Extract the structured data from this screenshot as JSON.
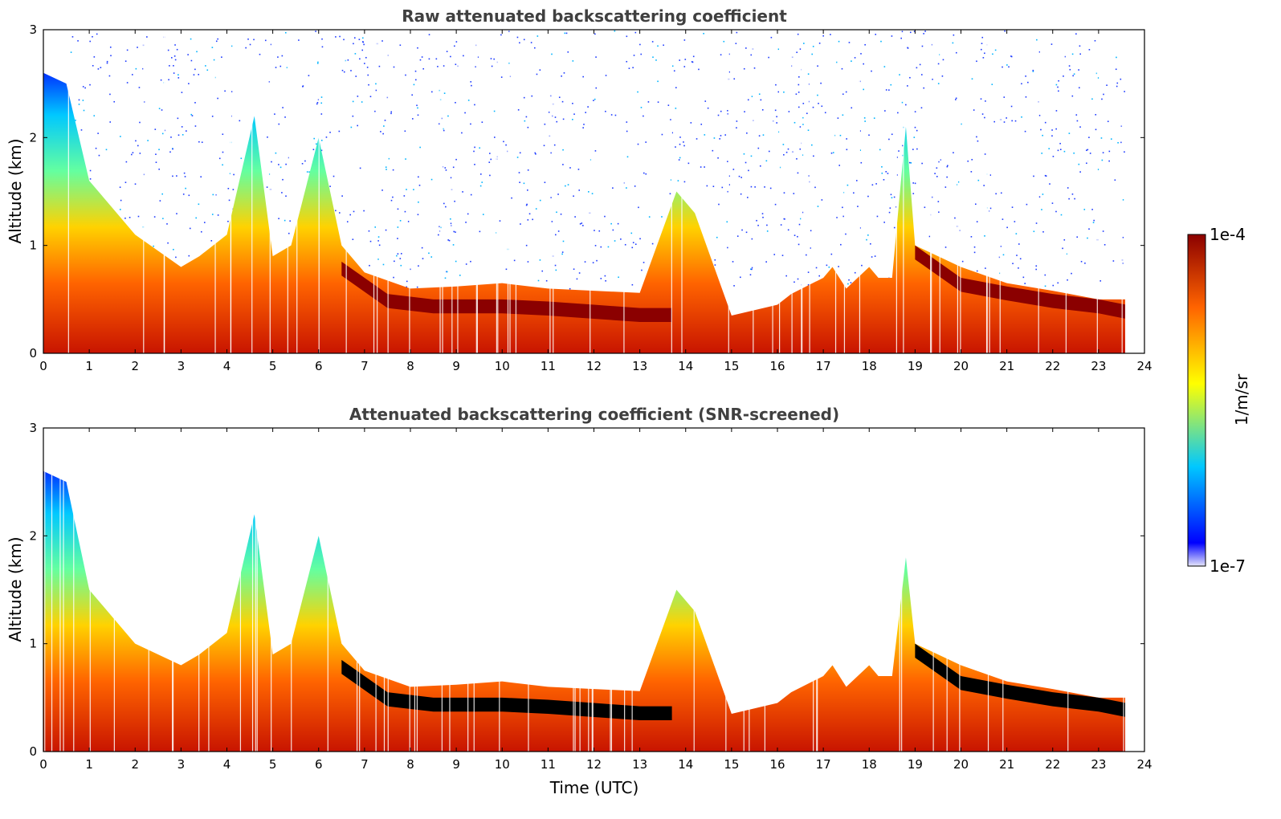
{
  "chart_data": [
    {
      "type": "heatmap",
      "title": "Raw attenuated backscattering coefficient",
      "xlabel": "",
      "ylabel": "Altitude (km)",
      "xlim": [
        0,
        24
      ],
      "ylim": [
        0,
        3
      ],
      "xticks": [
        "0",
        "1",
        "2",
        "3",
        "4",
        "5",
        "6",
        "7",
        "8",
        "9",
        "10",
        "11",
        "12",
        "13",
        "14",
        "15",
        "16",
        "17",
        "18",
        "19",
        "20",
        "21",
        "22",
        "23",
        "24"
      ],
      "yticks": [
        "0",
        "1",
        "2",
        "3"
      ],
      "data_end_hour": 23.6,
      "boundary_layer_top_km": {
        "x_hours": [
          0,
          0.5,
          1,
          2,
          3,
          3.4,
          4,
          4.6,
          5,
          5.4,
          6,
          6.5,
          7,
          8,
          9,
          10,
          11,
          12,
          13,
          13.8,
          14.2,
          15,
          16,
          16.3,
          17,
          17.2,
          17.5,
          18,
          18.2,
          18.5,
          18.8,
          19,
          20,
          21,
          22,
          23,
          23.6
        ],
        "y_km": [
          2.6,
          2.5,
          1.6,
          1.1,
          0.8,
          0.9,
          1.1,
          2.2,
          0.9,
          1.0,
          2.0,
          1.0,
          0.75,
          0.6,
          0.62,
          0.65,
          0.6,
          0.58,
          0.56,
          1.5,
          1.3,
          0.35,
          0.45,
          0.55,
          0.7,
          0.8,
          0.6,
          0.8,
          0.7,
          0.7,
          2.1,
          1.0,
          0.8,
          0.65,
          0.58,
          0.5,
          0.5
        ]
      },
      "dense_layer_top_km": {
        "x_hours": [
          6.5,
          7.5,
          8.5,
          9,
          10,
          11,
          12,
          13,
          13.7,
          19,
          20,
          21,
          22,
          23,
          23.6
        ],
        "y_km": [
          0.85,
          0.55,
          0.5,
          0.5,
          0.5,
          0.48,
          0.45,
          0.42,
          0.42,
          1.0,
          0.7,
          0.62,
          0.55,
          0.5,
          0.45
        ]
      }
    },
    {
      "type": "heatmap",
      "title": "Attenuated backscattering coefficient (SNR-screened)",
      "xlabel": "Time (UTC)",
      "ylabel": "Altitude (km)",
      "xlim": [
        0,
        24
      ],
      "ylim": [
        0,
        3
      ],
      "xticks": [
        "0",
        "1",
        "2",
        "3",
        "4",
        "5",
        "6",
        "7",
        "8",
        "9",
        "10",
        "11",
        "12",
        "13",
        "14",
        "15",
        "16",
        "17",
        "18",
        "19",
        "20",
        "21",
        "22",
        "23",
        "24"
      ],
      "yticks": [
        "0",
        "1",
        "2",
        "3"
      ],
      "data_end_hour": 23.6,
      "boundary_layer_top_km": {
        "x_hours": [
          0,
          0.5,
          1,
          2,
          3,
          3.4,
          4,
          4.6,
          5,
          5.4,
          6,
          6.5,
          7,
          8,
          9,
          10,
          11,
          12,
          13,
          13.8,
          14.2,
          15,
          16,
          16.3,
          17,
          17.2,
          17.5,
          18,
          18.2,
          18.5,
          18.8,
          19,
          20,
          21,
          22,
          23,
          23.6
        ],
        "y_km": [
          2.6,
          2.5,
          1.5,
          1.0,
          0.8,
          0.9,
          1.1,
          2.2,
          0.9,
          1.0,
          2.0,
          1.0,
          0.75,
          0.6,
          0.62,
          0.65,
          0.6,
          0.58,
          0.56,
          1.5,
          1.3,
          0.35,
          0.45,
          0.55,
          0.7,
          0.8,
          0.6,
          0.8,
          0.7,
          0.7,
          1.8,
          1.0,
          0.8,
          0.65,
          0.58,
          0.5,
          0.5
        ]
      },
      "dense_layer_top_km": {
        "x_hours": [
          6.5,
          7.5,
          8.5,
          9,
          10,
          11,
          12,
          13,
          13.7,
          19,
          20,
          21,
          22,
          23,
          23.6
        ],
        "y_km": [
          0.85,
          0.55,
          0.5,
          0.5,
          0.5,
          0.48,
          0.45,
          0.42,
          0.42,
          1.0,
          0.7,
          0.62,
          0.55,
          0.5,
          0.45
        ]
      }
    }
  ],
  "colorbar": {
    "max_label": "1e-4",
    "min_label": "1e-7",
    "label": "1/m/sr",
    "colors": [
      "#e6e6fa",
      "#0000ff",
      "#00c8ff",
      "#ffff00",
      "#ff6400",
      "#8b0000"
    ],
    "screened_saturation_color": "#000000"
  }
}
